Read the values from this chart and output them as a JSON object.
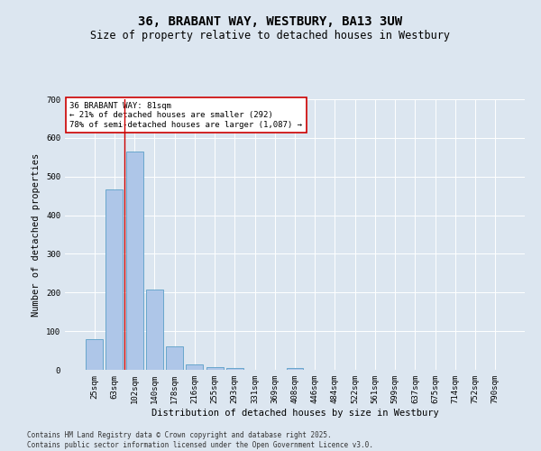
{
  "title": "36, BRABANT WAY, WESTBURY, BA13 3UW",
  "subtitle": "Size of property relative to detached houses in Westbury",
  "xlabel": "Distribution of detached houses by size in Westbury",
  "ylabel": "Number of detached properties",
  "categories": [
    "25sqm",
    "63sqm",
    "102sqm",
    "140sqm",
    "178sqm",
    "216sqm",
    "255sqm",
    "293sqm",
    "331sqm",
    "369sqm",
    "408sqm",
    "446sqm",
    "484sqm",
    "522sqm",
    "561sqm",
    "599sqm",
    "637sqm",
    "675sqm",
    "714sqm",
    "752sqm",
    "790sqm"
  ],
  "values": [
    80,
    467,
    565,
    207,
    60,
    15,
    7,
    5,
    0,
    0,
    4,
    0,
    0,
    0,
    0,
    0,
    0,
    0,
    0,
    0,
    0
  ],
  "bar_color": "#aec6e8",
  "bar_edge_color": "#5a9fc8",
  "vline_x": 1.5,
  "vline_color": "#cc0000",
  "ylim": [
    0,
    700
  ],
  "yticks": [
    0,
    100,
    200,
    300,
    400,
    500,
    600,
    700
  ],
  "annotation_text": "36 BRABANT WAY: 81sqm\n← 21% of detached houses are smaller (292)\n78% of semi-detached houses are larger (1,087) →",
  "annotation_box_color": "#ffffff",
  "annotation_box_edge_color": "#cc0000",
  "footer_line1": "Contains HM Land Registry data © Crown copyright and database right 2025.",
  "footer_line2": "Contains public sector information licensed under the Open Government Licence v3.0.",
  "background_color": "#dce6f0",
  "plot_bg_color": "#dce6f0",
  "title_fontsize": 10,
  "subtitle_fontsize": 8.5,
  "xlabel_fontsize": 7.5,
  "ylabel_fontsize": 7.5,
  "tick_fontsize": 6.5,
  "annotation_fontsize": 6.5,
  "footer_fontsize": 5.5
}
